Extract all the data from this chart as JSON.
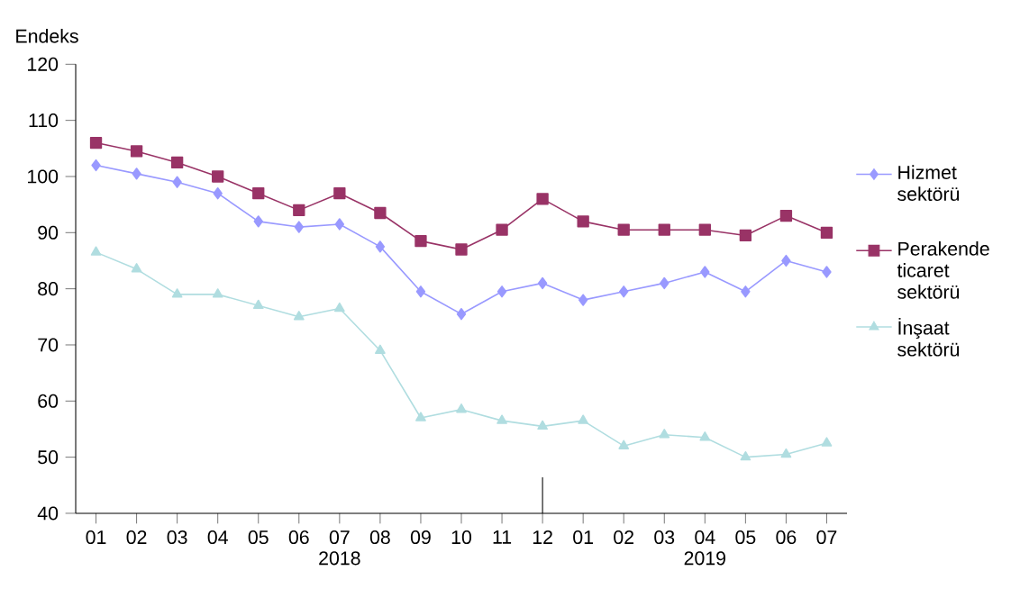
{
  "chart_data": {
    "type": "line",
    "ylabel": "Endeks",
    "categories": [
      "01",
      "02",
      "03",
      "04",
      "05",
      "06",
      "07",
      "08",
      "09",
      "10",
      "11",
      "12",
      "01",
      "02",
      "03",
      "04",
      "05",
      "06",
      "07"
    ],
    "ylim": [
      40,
      120
    ],
    "yticks": [
      40,
      50,
      60,
      70,
      80,
      90,
      100,
      110,
      120
    ],
    "legend": "right",
    "annotations": [
      "2018",
      "2019"
    ],
    "series": [
      {
        "name": "Hizmet sektörü",
        "color": "#9999ff",
        "marker": "diamond",
        "values": [
          102,
          100.5,
          99,
          97,
          92,
          91,
          91.5,
          87.5,
          79.5,
          75.5,
          79.5,
          81,
          78,
          79.5,
          81,
          83,
          79.5,
          85,
          83
        ]
      },
      {
        "name": "Perakende ticaret sektörü",
        "color": "#993366",
        "marker": "square",
        "values": [
          106,
          104.5,
          102.5,
          100,
          97,
          94,
          97,
          93.5,
          88.5,
          87,
          90.5,
          96,
          92,
          90.5,
          90.5,
          90.5,
          89.5,
          93,
          90
        ]
      },
      {
        "name": "İnşaat sektörü",
        "color": "#b0dde0",
        "marker": "triangle",
        "values": [
          86.5,
          83.5,
          79,
          79,
          77,
          75,
          76.5,
          69,
          57,
          58.5,
          56.5,
          55.5,
          56.5,
          52,
          54,
          53.5,
          50,
          50.5,
          52.5
        ]
      }
    ]
  }
}
